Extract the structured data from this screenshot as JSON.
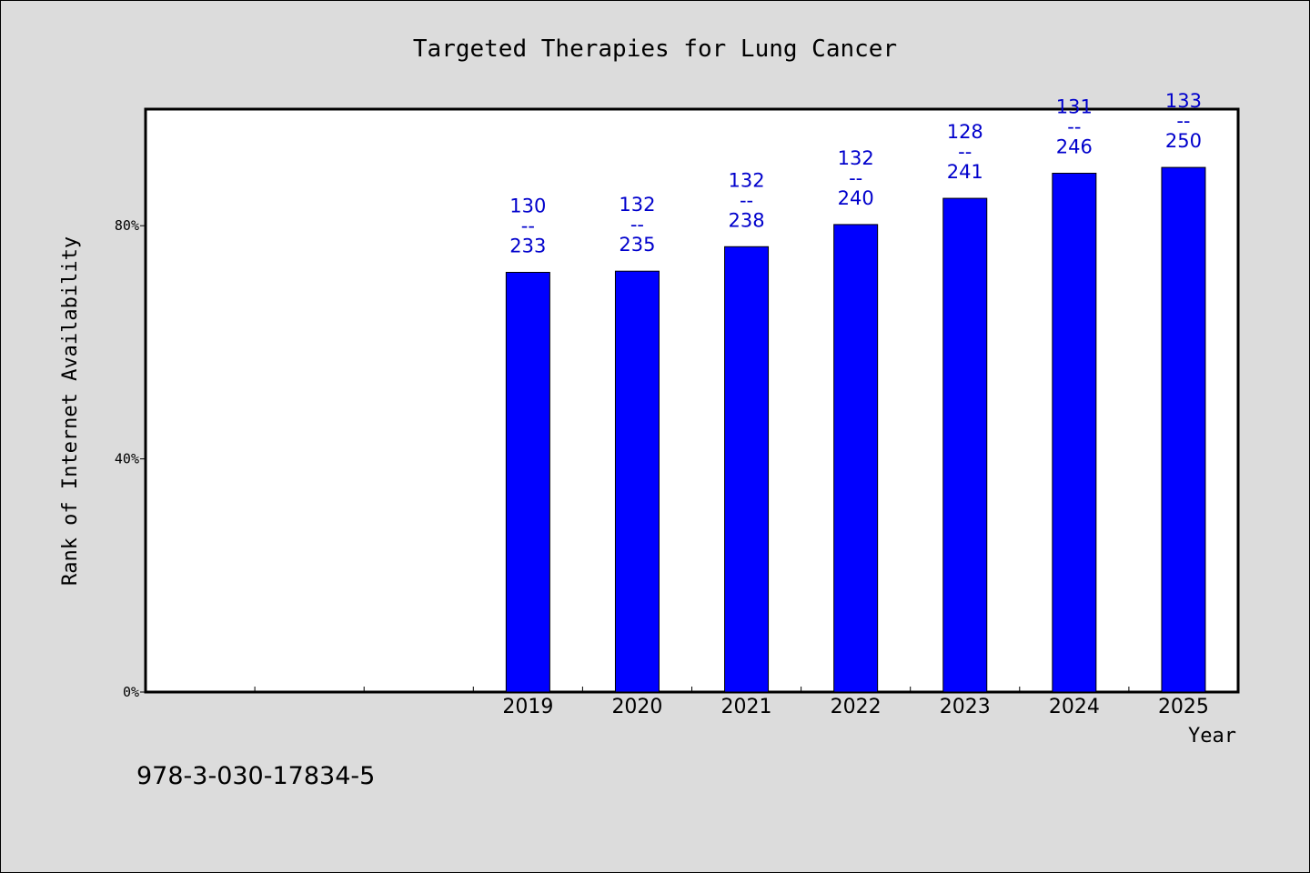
{
  "chart_data": {
    "type": "bar",
    "title": "Targeted Therapies for Lung Cancer",
    "xlabel": "Year",
    "ylabel": "Rank of Internet Availability",
    "categories": [
      "2019",
      "2020",
      "2021",
      "2022",
      "2023",
      "2024",
      "2025"
    ],
    "values": [
      72,
      72.2,
      76.4,
      80.2,
      84.7,
      89,
      90
    ],
    "point_labels": [
      [
        "130",
        "--",
        "233"
      ],
      [
        "132",
        "--",
        "235"
      ],
      [
        "132",
        "--",
        "238"
      ],
      [
        "132",
        "--",
        "240"
      ],
      [
        "128",
        "--",
        "241"
      ],
      [
        "131",
        "--",
        "246"
      ],
      [
        "133",
        "--",
        "250"
      ]
    ],
    "ylim": [
      0,
      100
    ],
    "yticks": [
      0,
      40,
      80
    ],
    "ytick_labels": [
      "0%",
      "40%",
      "80%"
    ],
    "x_slots": 10,
    "first_category_slot": 3,
    "grid": false,
    "colors": {
      "bar": "#0000ff",
      "label": "#0000cc",
      "plot_background": "#ffffff",
      "page_background": "#dcdcdc"
    }
  },
  "footer": {
    "isbn": "978-3-030-17834-5"
  }
}
